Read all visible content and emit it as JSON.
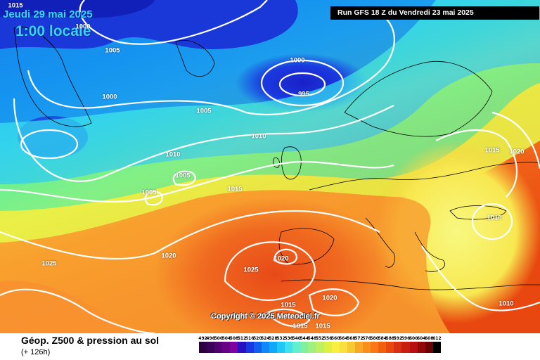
{
  "header": {
    "date": "Jeudi 29 mai 2025",
    "time": "1:00 locale",
    "run": "Run GFS 18 Z du Vendredi 23 mai 2025"
  },
  "footer": {
    "title": "Géop. Z500 & pression au sol",
    "lead": "(+ 126h)"
  },
  "copyright": "Copyright © 2025 Meteociel.fr",
  "isobar_labels": [
    "1015",
    "1000",
    "1005",
    "1000",
    "1005",
    "995",
    "1000",
    "1010",
    "1010",
    "1005",
    "1005",
    "1015",
    "1015",
    "1020",
    "1010",
    "1020",
    "1025",
    "1025",
    "1020",
    "1020",
    "1015",
    "1010",
    "1015",
    "1015"
  ],
  "legend": {
    "ticks": [
      "492",
      "496",
      "500",
      "504",
      "508",
      "512",
      "516",
      "520",
      "524",
      "528",
      "532",
      "536",
      "540",
      "544",
      "548",
      "552",
      "556",
      "560",
      "564",
      "568",
      "572",
      "576",
      "580",
      "584",
      "588",
      "592",
      "596",
      "600",
      "604",
      "608",
      "612"
    ],
    "colors": [
      "#2a0040",
      "#3d0058",
      "#500070",
      "#680088",
      "#8000a0",
      "#2a10c0",
      "#1838e0",
      "#1060f0",
      "#1088f8",
      "#10a8f8",
      "#20c8f8",
      "#40e0f0",
      "#60f0d0",
      "#80f0a0",
      "#a0f080",
      "#c0f060",
      "#e0f040",
      "#f8f040",
      "#f8e040",
      "#f8c830",
      "#f8a828",
      "#f89020",
      "#f87818",
      "#f06010",
      "#e84810",
      "#d83010",
      "#c82010",
      "#b81010",
      "#900808",
      "#680404",
      "#000000"
    ]
  }
}
